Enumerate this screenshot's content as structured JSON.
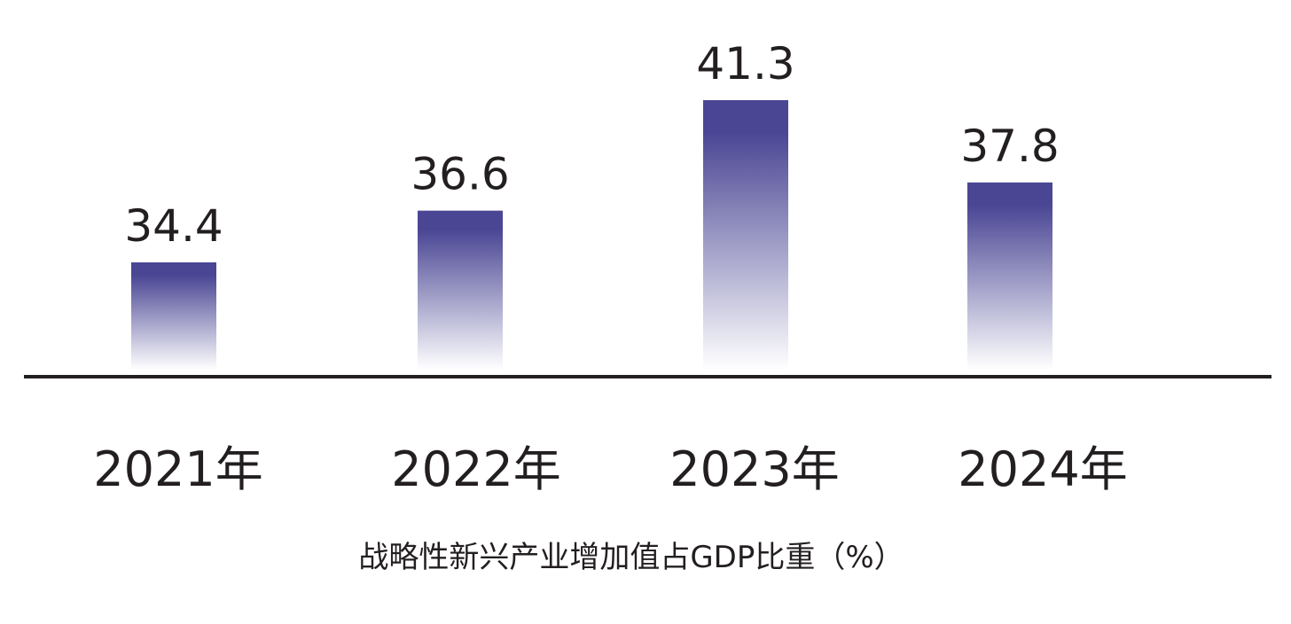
{
  "chart_data": {
    "type": "bar",
    "categories": [
      "2021年",
      "2022年",
      "2023年",
      "2024年"
    ],
    "values": [
      34.4,
      36.6,
      41.3,
      37.8
    ],
    "value_labels": [
      "34.4",
      "36.6",
      "41.3",
      "37.8"
    ],
    "title": "",
    "caption": "战略性新兴产业增加值占GDP比重（%）",
    "xlabel": "",
    "ylabel": "",
    "y_axis_visible": false,
    "grid": false,
    "legend": "none",
    "colors": {
      "bar_top": "#4a4694",
      "bar_bottom": "#ffffff",
      "axis": "#231f20",
      "text": "#231f20"
    }
  }
}
